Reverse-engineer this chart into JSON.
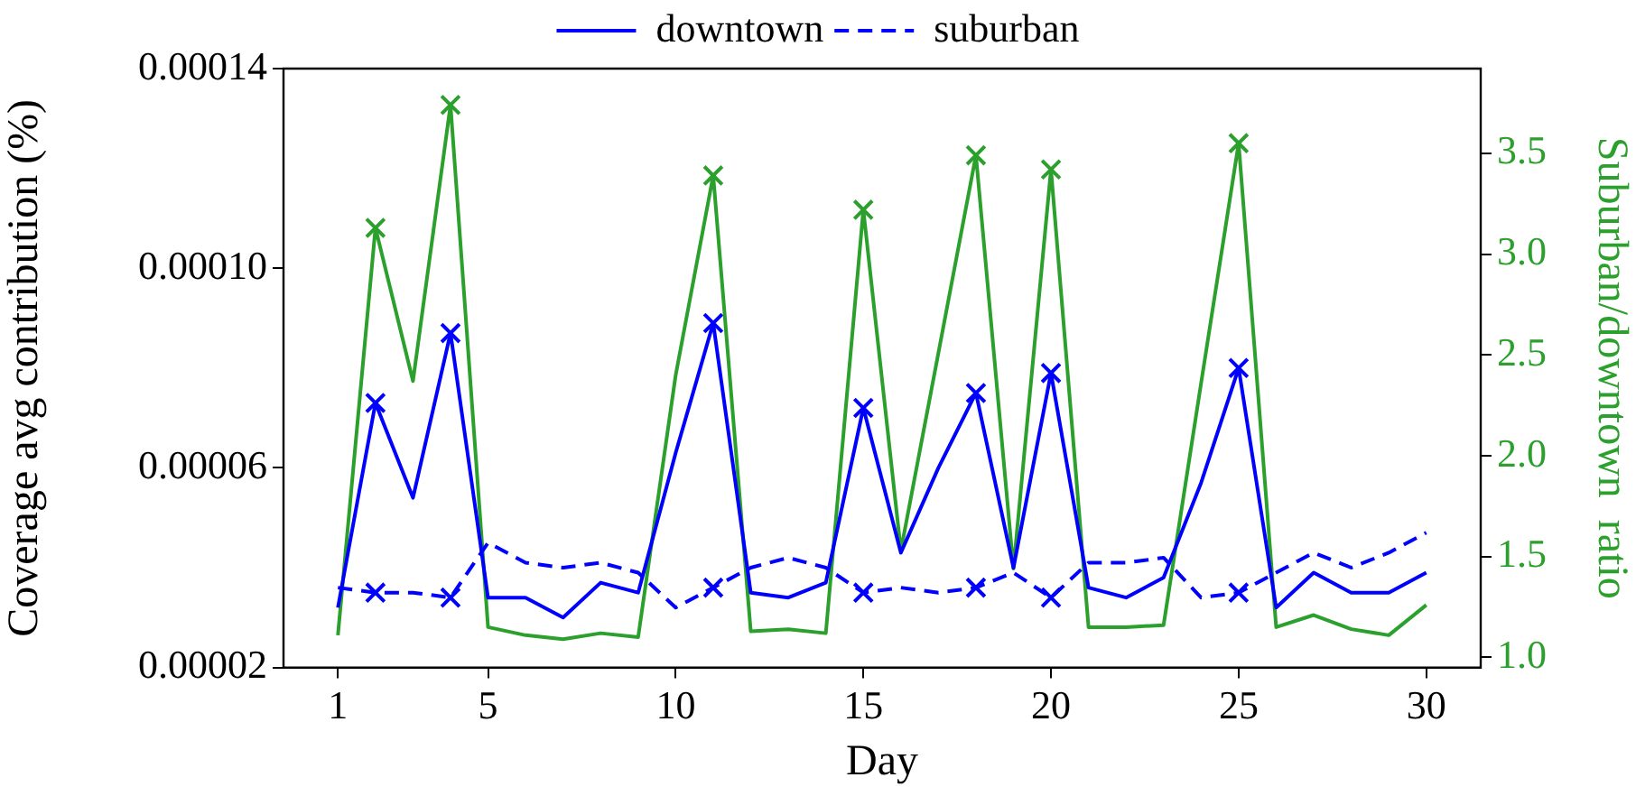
{
  "chart_data": {
    "type": "line",
    "xlabel": "Day",
    "ylabel": "Coverage avg contribution (%)",
    "y2label": "Suburban/downtown  ratio",
    "legend": "top",
    "grid": false,
    "x": [
      1,
      2,
      3,
      4,
      5,
      6,
      7,
      8,
      9,
      10,
      11,
      12,
      13,
      14,
      15,
      16,
      17,
      18,
      19,
      20,
      21,
      22,
      23,
      24,
      25,
      26,
      27,
      28,
      29,
      30
    ],
    "xlim": [
      -0.45,
      31.45
    ],
    "xticks": [
      1,
      5,
      10,
      15,
      20,
      25,
      30
    ],
    "ylim": [
      2e-05,
      0.00014
    ],
    "yticks": [
      {
        "value": 2e-05,
        "label": "0.00002"
      },
      {
        "value": 6e-05,
        "label": "0.00006"
      },
      {
        "value": 0.0001,
        "label": "0.00010"
      },
      {
        "value": 0.00014,
        "label": "0.00014"
      }
    ],
    "y2lim": [
      0.95,
      3.92
    ],
    "y2ticks": [
      {
        "value": 1,
        "label": "1.0"
      },
      {
        "value": 1.5,
        "label": "1.5"
      },
      {
        "value": 2,
        "label": "2.0"
      },
      {
        "value": 2.5,
        "label": "2.5"
      },
      {
        "value": 3,
        "label": "3.0"
      },
      {
        "value": 3.5,
        "label": "3.5"
      }
    ],
    "series": [
      {
        "name": "downtown",
        "line_style": "solid",
        "color": "#0000ff",
        "values": [
          3.2e-05,
          7.3e-05,
          5.4e-05,
          8.7e-05,
          3.4e-05,
          3.4e-05,
          3e-05,
          3.7e-05,
          3.5e-05,
          6.3e-05,
          8.9e-05,
          3.5e-05,
          3.4e-05,
          3.7e-05,
          7.2e-05,
          4.3e-05,
          6e-05,
          7.5e-05,
          4e-05,
          7.9e-05,
          3.6e-05,
          3.4e-05,
          3.8e-05,
          5.7e-05,
          8e-05,
          3.2e-05,
          3.9e-05,
          3.5e-05,
          3.5e-05,
          3.9e-05
        ]
      },
      {
        "name": "suburban",
        "line_style": "dashed",
        "color": "#0000ff",
        "values": [
          3.6e-05,
          3.5e-05,
          3.5e-05,
          3.4e-05,
          4.5e-05,
          4.1e-05,
          4e-05,
          4.1e-05,
          3.9e-05,
          3.2e-05,
          3.6e-05,
          4e-05,
          4.2e-05,
          4e-05,
          3.5e-05,
          3.6e-05,
          3.5e-05,
          3.6e-05,
          3.9e-05,
          3.4e-05,
          4.1e-05,
          4.1e-05,
          4.2e-05,
          3.4e-05,
          3.5e-05,
          3.9e-05,
          4.3e-05,
          4e-05,
          4.3e-05,
          4.7e-05
        ]
      },
      {
        "line_style": "solid",
        "axis": "y2",
        "color": "#2ca02c",
        "values": [
          1.11,
          3.13,
          2.37,
          3.74,
          1.15,
          1.11,
          1.09,
          1.12,
          1.1,
          2.4,
          3.39,
          1.13,
          1.14,
          1.12,
          3.22,
          1.53,
          2.51,
          3.49,
          1.44,
          3.42,
          1.15,
          1.15,
          1.16,
          2.36,
          3.55,
          1.15,
          1.21,
          1.14,
          1.11,
          1.26
        ]
      },
      {
        "type": "scatter",
        "marker": "cross",
        "color": "#0000ff",
        "x": [
          2,
          4,
          11,
          15,
          18,
          20,
          25
        ],
        "values": [
          7.3e-05,
          8.7e-05,
          8.9e-05,
          7.2e-05,
          7.5e-05,
          7.9e-05,
          8e-05
        ]
      },
      {
        "type": "scatter",
        "marker": "cross",
        "color": "#0000ff",
        "x": [
          2,
          4,
          11,
          15,
          18,
          20,
          25
        ],
        "values": [
          3.5e-05,
          3.4e-05,
          3.6e-05,
          3.5e-05,
          3.6e-05,
          3.4e-05,
          3.5e-05
        ]
      },
      {
        "type": "scatter",
        "marker": "cross",
        "axis": "y2",
        "color": "#2ca02c",
        "x": [
          2,
          4,
          11,
          15,
          18,
          20,
          25
        ],
        "values": [
          3.13,
          3.74,
          3.39,
          3.22,
          3.49,
          3.42,
          3.55
        ]
      }
    ]
  }
}
